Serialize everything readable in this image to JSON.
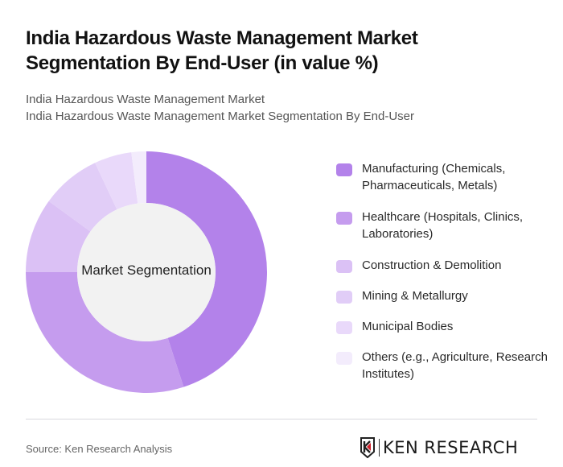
{
  "header": {
    "title": "India Hazardous Waste Management Market Segmentation By End-User (in value %)",
    "subtitle_line1": "India Hazardous Waste Management Market",
    "subtitle_line2": "India Hazardous Waste Management Market Segmentation By End-User"
  },
  "chart": {
    "center_label": "Market Segmentation"
  },
  "legend": {
    "items": [
      {
        "label": "Manufacturing (Chemicals, Pharmaceuticals, Metals)",
        "color": "#b382ea"
      },
      {
        "label": "Healthcare (Hospitals, Clinics, Laboratories)",
        "color": "#c59cee"
      },
      {
        "label": "Construction & Demolition",
        "color": "#dbc1f5"
      },
      {
        "label": "Mining & Metallurgy",
        "color": "#e1cdf7"
      },
      {
        "label": "Municipal Bodies",
        "color": "#e9d9fa"
      },
      {
        "label": "Others (e.g., Agriculture, Research Institutes)",
        "color": "#f3ecfc"
      }
    ]
  },
  "footer": {
    "source": "Source: Ken Research Analysis",
    "logo_text": "KEN RESEARCH"
  },
  "chart_data": {
    "type": "pie",
    "title": "India Hazardous Waste Management Market Segmentation By End-User (in value %)",
    "subtitle": "India Hazardous Waste Management Market Segmentation By End-User",
    "center_label": "Market Segmentation",
    "categories": [
      "Manufacturing (Chemicals, Pharmaceuticals, Metals)",
      "Healthcare (Hospitals, Clinics, Laboratories)",
      "Construction & Demolition",
      "Mining & Metallurgy",
      "Municipal Bodies",
      "Others (e.g., Agriculture, Research Institutes)"
    ],
    "values": [
      45,
      30,
      10,
      8,
      5,
      2
    ],
    "colors": [
      "#b382ea",
      "#c59cee",
      "#dbc1f5",
      "#e1cdf7",
      "#e9d9fa",
      "#f3ecfc"
    ],
    "donut": true,
    "legend_position": "right",
    "source": "Source: Ken Research Analysis"
  }
}
